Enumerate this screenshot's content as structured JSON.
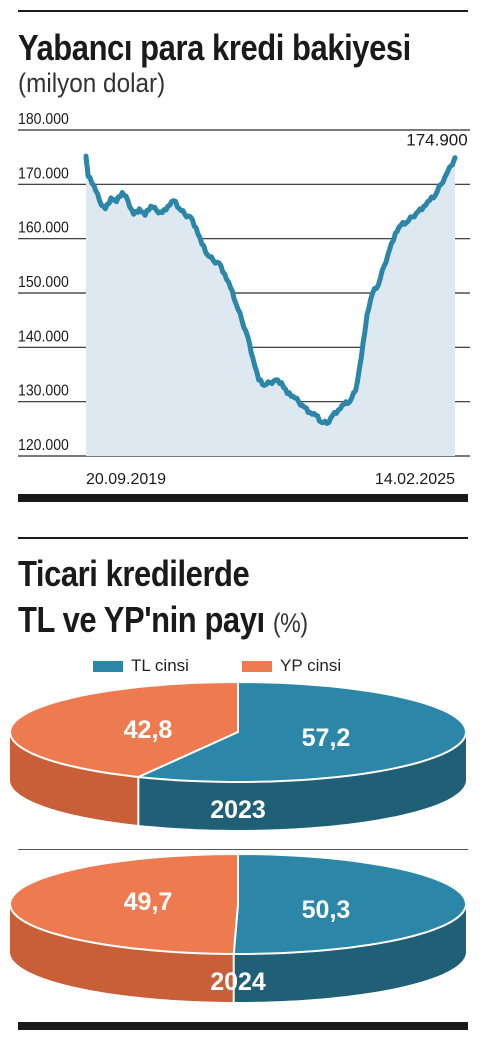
{
  "line_chart": {
    "title": "Yabancı para kredi bakiyesi",
    "unit": "(milyon dolar)",
    "end_label": "174.900",
    "colors": {
      "line": "#2b86a8",
      "fill": "#dde8f1",
      "grid": "#2a2a2a"
    }
  },
  "pie_section": {
    "title_line1": "Ticari kredilerde",
    "title_line2": "TL ve YP'nin payı",
    "unit": "(%)",
    "legend": [
      {
        "label": "TL cinsi",
        "color": "#2b86a8"
      },
      {
        "label": "YP cinsi",
        "color": "#ee7b50"
      }
    ],
    "side_colors": {
      "tl": "#1f6077",
      "yp": "#c85f38"
    }
  },
  "chart_data": [
    {
      "type": "line",
      "title": "Yabancı para kredi bakiyesi",
      "ylabel": "(milyon dolar)",
      "xlabel": "",
      "ylim": [
        120000,
        180000
      ],
      "yticks": [
        "120.000",
        "130.000",
        "140.000",
        "150.000",
        "160.000",
        "170.000",
        "180.000"
      ],
      "ytick_values": [
        120000,
        130000,
        140000,
        150000,
        160000,
        170000,
        180000
      ],
      "x_tick_labels": [
        "20.09.2019",
        "14.02.2025"
      ],
      "grid": true,
      "series": [
        {
          "x": [
            "2019-09-20",
            "2019-10-01",
            "2019-11-01",
            "2019-12-01",
            "2020-01-01",
            "2020-02-01",
            "2020-03-01",
            "2020-04-01",
            "2020-05-01",
            "2020-06-01",
            "2020-07-01",
            "2020-08-01",
            "2020-09-01",
            "2020-10-01",
            "2020-11-01",
            "2020-12-01",
            "2021-01-01",
            "2021-02-01",
            "2021-03-01",
            "2021-04-01",
            "2021-05-01",
            "2021-06-01",
            "2021-07-01",
            "2021-08-01",
            "2021-09-01",
            "2021-10-01",
            "2021-11-01",
            "2021-12-01",
            "2022-01-01",
            "2022-02-01",
            "2022-03-01",
            "2022-04-01",
            "2022-05-01",
            "2022-06-01",
            "2022-07-01",
            "2022-08-01",
            "2022-09-01",
            "2022-10-01",
            "2022-11-01",
            "2022-12-01",
            "2023-01-01",
            "2023-02-01",
            "2023-03-01",
            "2023-04-01",
            "2023-05-01",
            "2023-06-01",
            "2023-07-01",
            "2023-08-01",
            "2023-09-01",
            "2023-10-01",
            "2023-11-01",
            "2023-12-01",
            "2024-01-01",
            "2024-02-01",
            "2024-03-01",
            "2024-04-01",
            "2024-05-01",
            "2024-06-01",
            "2024-07-01",
            "2024-08-01",
            "2024-09-01",
            "2024-10-01",
            "2024-11-01",
            "2024-12-01",
            "2025-01-01",
            "2025-02-14"
          ],
          "values": [
            175200,
            171500,
            169800,
            167000,
            165500,
            167500,
            166800,
            168500,
            167000,
            164500,
            165500,
            164300,
            166000,
            165200,
            164800,
            166000,
            167000,
            165500,
            164500,
            164000,
            162000,
            159000,
            157000,
            156000,
            155500,
            153500,
            151000,
            148000,
            145000,
            142000,
            138000,
            134000,
            133000,
            133500,
            134000,
            133500,
            131500,
            131000,
            130000,
            129000,
            128000,
            127500,
            126200,
            126000,
            127500,
            128500,
            129500,
            130000,
            132000,
            138000,
            146000,
            150000,
            151500,
            155000,
            158000,
            161000,
            162500,
            163000,
            164000,
            165000,
            166000,
            167000,
            168000,
            170000,
            172000,
            174900
          ]
        }
      ]
    },
    {
      "type": "pie",
      "title": "Ticari kredilerde TL ve YP'nin payı",
      "ylabel": "(%)",
      "label": "2023",
      "slices": [
        {
          "name": "TL cinsi",
          "value": 57.2
        },
        {
          "name": "YP cinsi",
          "value": 42.8
        }
      ],
      "value_labels": [
        "57,2",
        "42,8"
      ]
    },
    {
      "type": "pie",
      "title": "Ticari kredilerde TL ve YP'nin payı",
      "ylabel": "(%)",
      "label": "2024",
      "slices": [
        {
          "name": "TL cinsi",
          "value": 50.3
        },
        {
          "name": "YP cinsi",
          "value": 49.7
        }
      ],
      "value_labels": [
        "50,3",
        "49,7"
      ]
    }
  ]
}
